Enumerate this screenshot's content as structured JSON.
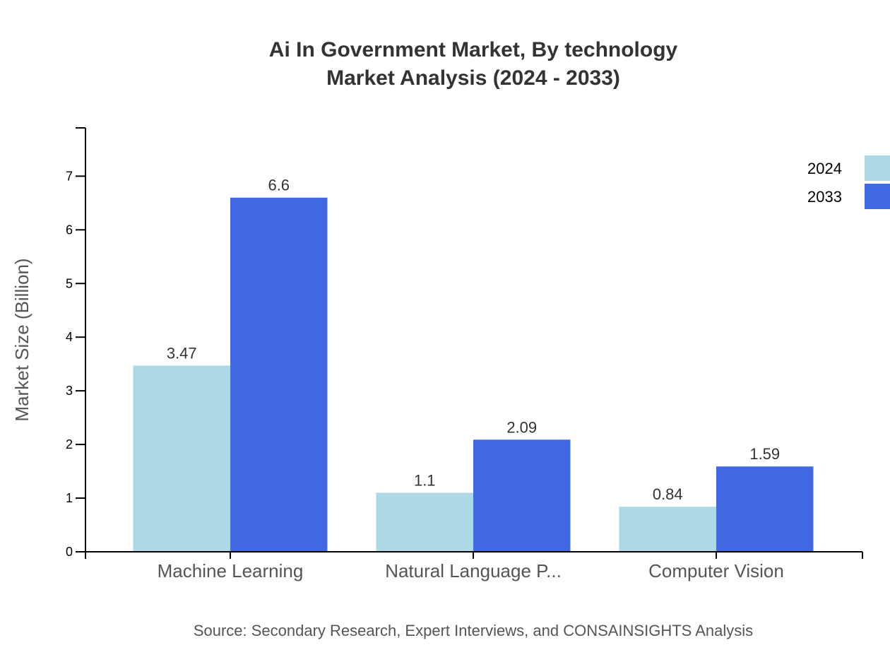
{
  "chart_data": {
    "type": "bar",
    "title": [
      "Ai In Government Market, By technology",
      "Market Analysis (2024 - 2033)"
    ],
    "xlabel": "",
    "ylabel": "Market Size (Billion)",
    "categories": [
      "Machine Learning",
      "Natural Language P...",
      "Computer Vision"
    ],
    "series": [
      {
        "name": "2024",
        "values": [
          3.47,
          1.1,
          0.84
        ],
        "color": "#add8e6"
      },
      {
        "name": "2033",
        "values": [
          6.6,
          2.09,
          1.59
        ],
        "color": "#4169e1"
      }
    ],
    "ylim": [
      0,
      7.9
    ],
    "yticks": [
      0,
      1,
      2,
      3,
      4,
      5,
      6,
      7
    ],
    "grid": false,
    "legend_position": "top-right",
    "source": "Source: Secondary Research, Expert Interviews, and CONSAINSIGHTS Analysis"
  }
}
